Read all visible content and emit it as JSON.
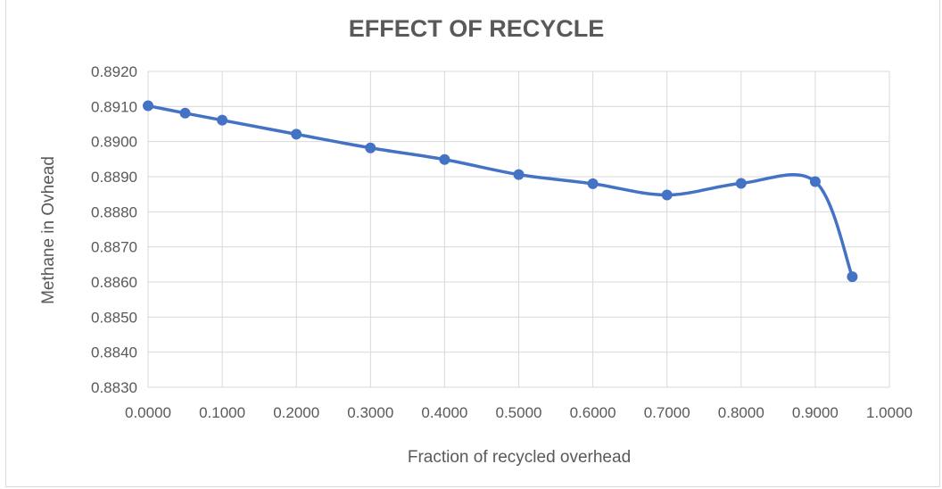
{
  "chart_data": {
    "type": "line",
    "title": "EFFECT OF RECYCLE",
    "xlabel": "Fraction of recycled overhead",
    "ylabel": "Methane in Ovhead",
    "xlim": [
      0.0,
      1.0
    ],
    "ylim": [
      0.883,
      0.892
    ],
    "x_ticks": [
      "0.0000",
      "0.1000",
      "0.2000",
      "0.3000",
      "0.4000",
      "0.5000",
      "0.6000",
      "0.7000",
      "0.8000",
      "0.9000",
      "1.0000"
    ],
    "y_ticks": [
      "0.8830",
      "0.8840",
      "0.8850",
      "0.8860",
      "0.8870",
      "0.8880",
      "0.8890",
      "0.8900",
      "0.8910",
      "0.8920"
    ],
    "grid": true,
    "legend": "none",
    "smoothed": true,
    "series": [
      {
        "color": "#4472c4",
        "x": [
          0.0,
          0.05,
          0.1,
          0.2,
          0.3,
          0.4,
          0.5,
          0.6,
          0.7,
          0.8,
          0.9,
          0.95
        ],
        "y": [
          0.89102,
          0.89081,
          0.89061,
          0.89021,
          0.88982,
          0.88949,
          0.88906,
          0.8888,
          0.88848,
          0.88881,
          0.88886,
          0.88615
        ]
      }
    ]
  }
}
